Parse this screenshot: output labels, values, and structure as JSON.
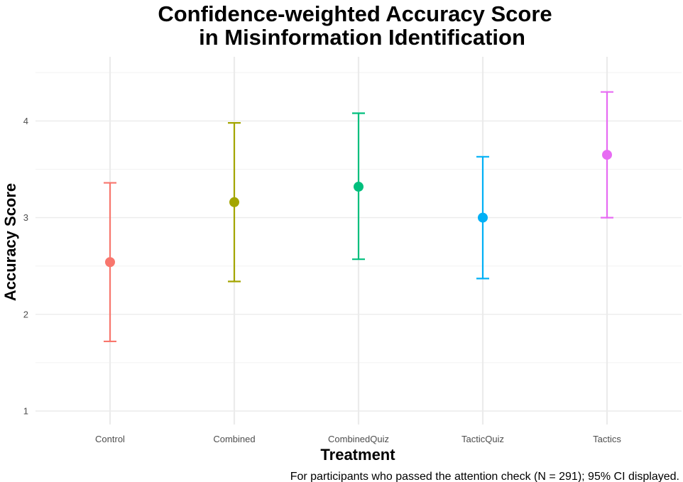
{
  "chart_data": {
    "type": "scatter",
    "title_line1": "Confidence-weighted Accuracy Score",
    "title_line2": "in Misinformation Identification",
    "xlabel": "Treatment",
    "ylabel": "Accuracy Score",
    "caption": "For participants who passed the attention check (N = 291); 95% CI displayed.",
    "categories": [
      "Control",
      "Combined",
      "CombinedQuiz",
      "TacticQuiz",
      "Tactics"
    ],
    "values": [
      2.54,
      3.16,
      3.32,
      3.0,
      3.65
    ],
    "ci_lower": [
      1.72,
      2.34,
      2.57,
      2.37,
      3.0
    ],
    "ci_upper": [
      3.36,
      3.98,
      4.08,
      3.63,
      4.3
    ],
    "colors": [
      "#F8766D",
      "#A3A500",
      "#00BF7D",
      "#00B0F6",
      "#E76BF3"
    ],
    "yticks": [
      1,
      2,
      3,
      4
    ],
    "ylim": [
      0.85,
      4.5
    ],
    "grid": true,
    "legend": "none"
  }
}
